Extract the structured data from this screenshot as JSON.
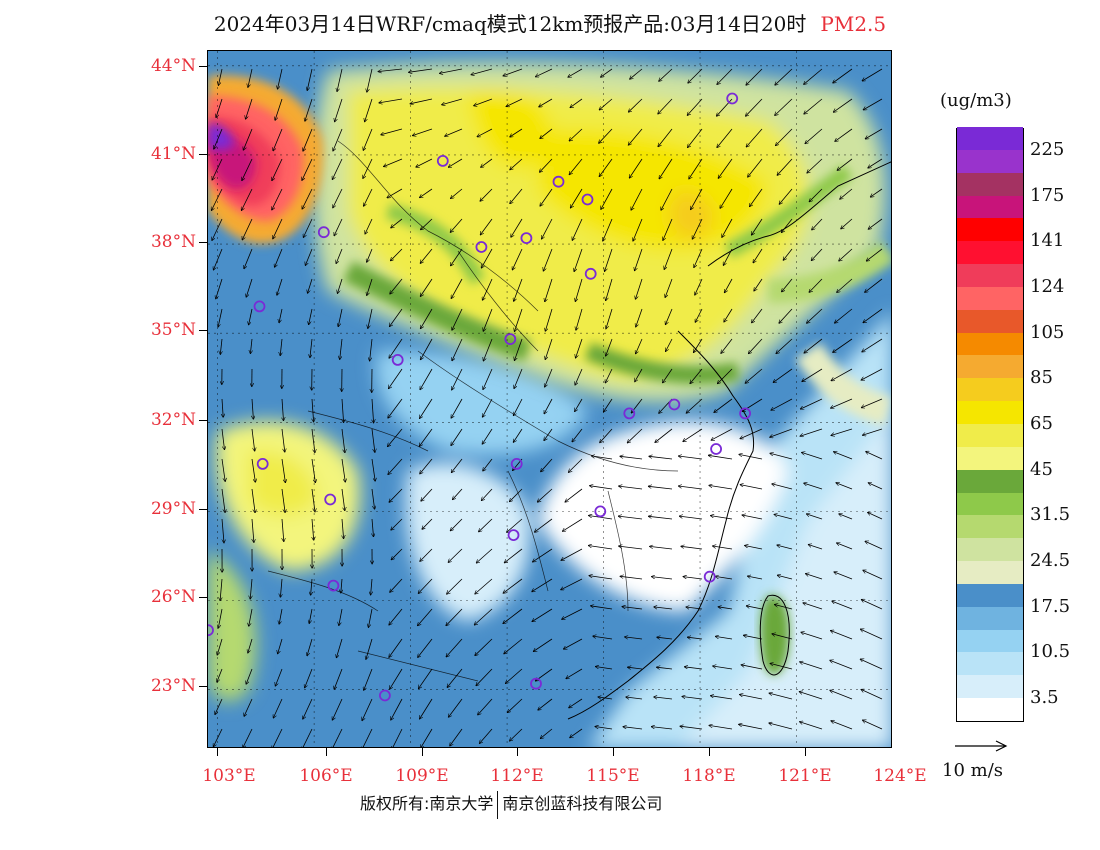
{
  "title": {
    "main": "2024年03月14日WRF/cmaq模式12km预报产品:03月14日20时",
    "pollutant": "PM2.5",
    "pollutant_color": "#e8303a"
  },
  "map": {
    "lat_labels": [
      "44°N",
      "41°N",
      "38°N",
      "35°N",
      "32°N",
      "29°N",
      "26°N",
      "23°N"
    ],
    "lon_labels": [
      "103°E",
      "106°E",
      "109°E",
      "112°E",
      "115°E",
      "118°E",
      "121°E",
      "124°E"
    ],
    "lat_range": [
      21,
      44.5
    ],
    "lon_range": [
      102.7,
      124
    ],
    "axis_label_color": "#e8303a"
  },
  "colorbar": {
    "units": "(ug/m3)",
    "colors": [
      "#ffffff",
      "#d7eefa",
      "#b9e3f7",
      "#95d2f2",
      "#6fb3e0",
      "#4a8fc9",
      "#e6ecc3",
      "#cfe3a0",
      "#b5d96f",
      "#8ec94a",
      "#6aa83a",
      "#f3f57d",
      "#f0ec4a",
      "#f5e600",
      "#f5cc1e",
      "#f5aa30",
      "#f58a00",
      "#e8582a",
      "#ff6464",
      "#f03c5a",
      "#ff1030",
      "#ff0000",
      "#c8147a",
      "#a43262",
      "#9933cc",
      "#7a2ad6"
    ],
    "labels": [
      "3.5",
      "10.5",
      "17.5",
      "24.5",
      "31.5",
      "45",
      "65",
      "85",
      "105",
      "124",
      "141",
      "175",
      "225"
    ]
  },
  "reference_vector": {
    "label": "10 m/s"
  },
  "stations": [
    {
      "lon": 119.0,
      "lat": 42.9
    },
    {
      "lon": 110.0,
      "lat": 40.8
    },
    {
      "lon": 113.6,
      "lat": 40.1
    },
    {
      "lon": 114.5,
      "lat": 39.5
    },
    {
      "lon": 106.3,
      "lat": 38.4
    },
    {
      "lon": 111.2,
      "lat": 37.9
    },
    {
      "lon": 112.6,
      "lat": 38.2
    },
    {
      "lon": 114.6,
      "lat": 37.0
    },
    {
      "lon": 104.3,
      "lat": 35.9
    },
    {
      "lon": 112.1,
      "lat": 34.8
    },
    {
      "lon": 108.6,
      "lat": 34.1
    },
    {
      "lon": 117.2,
      "lat": 32.6
    },
    {
      "lon": 115.8,
      "lat": 32.3
    },
    {
      "lon": 119.4,
      "lat": 32.3
    },
    {
      "lon": 118.5,
      "lat": 31.1
    },
    {
      "lon": 104.4,
      "lat": 30.6
    },
    {
      "lon": 112.3,
      "lat": 30.6
    },
    {
      "lon": 106.5,
      "lat": 29.4
    },
    {
      "lon": 114.9,
      "lat": 29.0
    },
    {
      "lon": 112.2,
      "lat": 28.2
    },
    {
      "lon": 106.6,
      "lat": 26.5
    },
    {
      "lon": 118.3,
      "lat": 26.8
    },
    {
      "lon": 102.7,
      "lat": 25.0
    },
    {
      "lon": 112.9,
      "lat": 23.2
    },
    {
      "lon": 108.2,
      "lat": 22.8
    }
  ],
  "footer": {
    "left": "版权所有:南京大学",
    "right": "南京创蓝科技有限公司"
  }
}
